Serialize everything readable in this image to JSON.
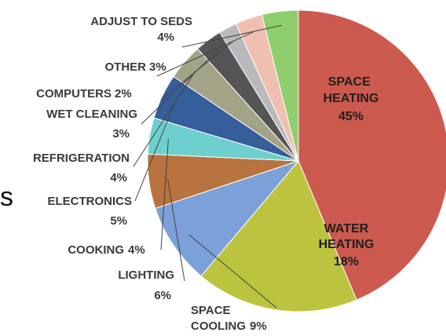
{
  "stray_text": "s",
  "chart_data": {
    "type": "pie",
    "title": "",
    "unit": "%",
    "slices": [
      {
        "label": "SPACE HEATING",
        "value": 45,
        "pct_label": "45%",
        "color": "#cd5a4e"
      },
      {
        "label": "WATER HEATING",
        "value": 18,
        "pct_label": "18%",
        "color": "#bcc33e"
      },
      {
        "label": "SPACE COOLING",
        "value": 9,
        "pct_label": "9%",
        "color": "#7ca0d8"
      },
      {
        "label": "LIGHTING",
        "value": 6,
        "pct_label": "6%",
        "color": "#b8733f"
      },
      {
        "label": "COOKING",
        "value": 4,
        "pct_label": "4%",
        "color": "#6dd0ce"
      },
      {
        "label": "ELECTRONICS",
        "value": 5,
        "pct_label": "5%",
        "color": "#355e9a"
      },
      {
        "label": "REFRIGERATION",
        "value": 4,
        "pct_label": "4%",
        "color": "#a3a387"
      },
      {
        "label": "WET CLEANING",
        "value": 3,
        "pct_label": "3%",
        "color": "#555555"
      },
      {
        "label": "COMPUTERS",
        "value": 2,
        "pct_label": "2%",
        "color": "#b9b9bd"
      },
      {
        "label": "OTHER",
        "value": 3,
        "pct_label": "3%",
        "color": "#efc0b2"
      },
      {
        "label": "ADJUST TO SEDS",
        "value": 4,
        "pct_label": "4%",
        "color": "#8fce6c"
      }
    ]
  }
}
